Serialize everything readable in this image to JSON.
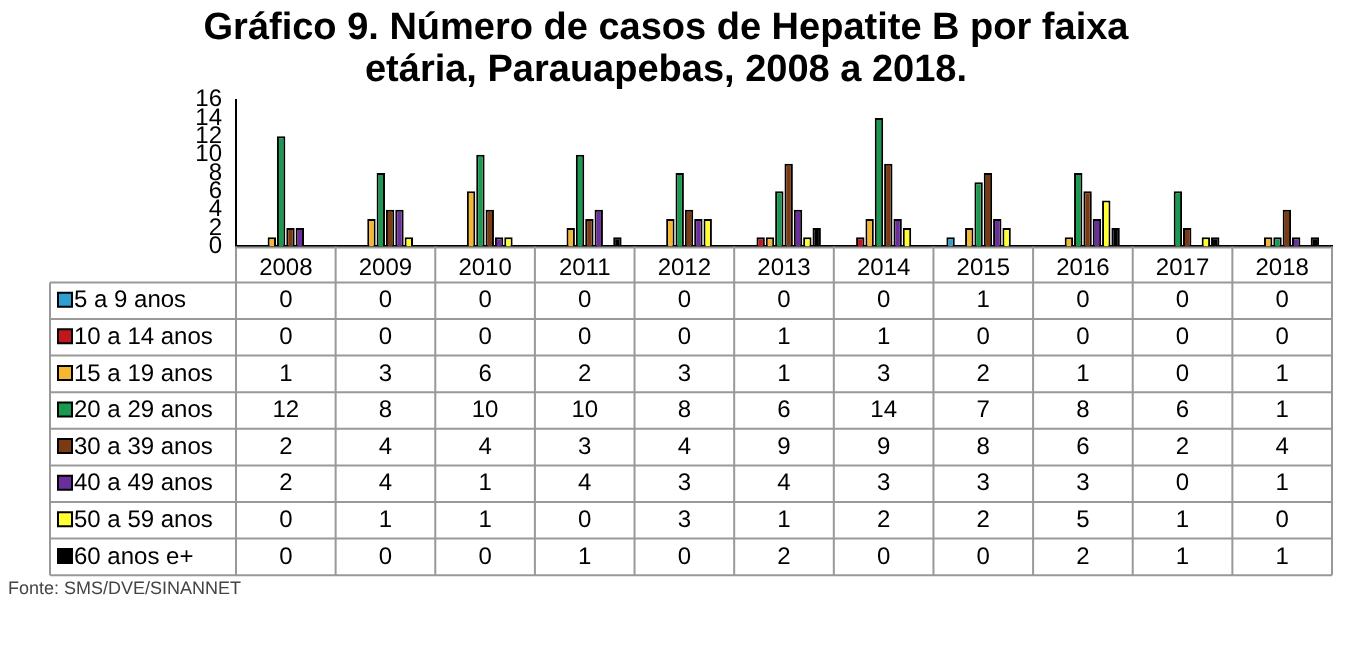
{
  "chart_data": {
    "type": "bar",
    "title": "Gráfico 9. Número de casos de Hepatite B por faixa etária, Parauapebas, 2008 a 2018.",
    "categories": [
      "2008",
      "2009",
      "2010",
      "2011",
      "2012",
      "2013",
      "2014",
      "2015",
      "2016",
      "2017",
      "2018"
    ],
    "series": [
      {
        "name": "5 a 9 anos",
        "color": "#2e9fd0",
        "values": [
          0,
          0,
          0,
          0,
          0,
          0,
          0,
          1,
          0,
          0,
          0
        ]
      },
      {
        "name": "10 a 14 anos",
        "color": "#c0171c",
        "values": [
          0,
          0,
          0,
          0,
          0,
          1,
          1,
          0,
          0,
          0,
          0
        ]
      },
      {
        "name": "15 a 19 anos",
        "color": "#f5b731",
        "values": [
          1,
          3,
          6,
          2,
          3,
          1,
          3,
          2,
          1,
          0,
          1
        ]
      },
      {
        "name": "20 a 29 anos",
        "color": "#1a9a50",
        "values": [
          12,
          8,
          10,
          10,
          8,
          6,
          14,
          7,
          8,
          6,
          1
        ]
      },
      {
        "name": "30 a 39 anos",
        "color": "#7a3a12",
        "values": [
          2,
          4,
          4,
          3,
          4,
          9,
          9,
          8,
          6,
          2,
          4
        ]
      },
      {
        "name": "40 a 49 anos",
        "color": "#6a2f9a",
        "values": [
          2,
          4,
          1,
          4,
          3,
          4,
          3,
          3,
          3,
          0,
          1
        ]
      },
      {
        "name": "50 a 59 anos",
        "color": "#ffff33",
        "values": [
          0,
          1,
          1,
          0,
          3,
          1,
          2,
          2,
          5,
          1,
          0
        ]
      },
      {
        "name": "60 anos e+",
        "color": "#000000",
        "values": [
          0,
          0,
          0,
          1,
          0,
          2,
          0,
          0,
          2,
          1,
          1
        ]
      }
    ],
    "ylim": [
      0,
      16
    ],
    "yticks": [
      0,
      2,
      4,
      6,
      8,
      10,
      12,
      14,
      16
    ],
    "grid": false,
    "legend": "bottom",
    "data_labels": true,
    "annotations": [
      "Fonte: SMS/DVE/SINANNET"
    ]
  }
}
